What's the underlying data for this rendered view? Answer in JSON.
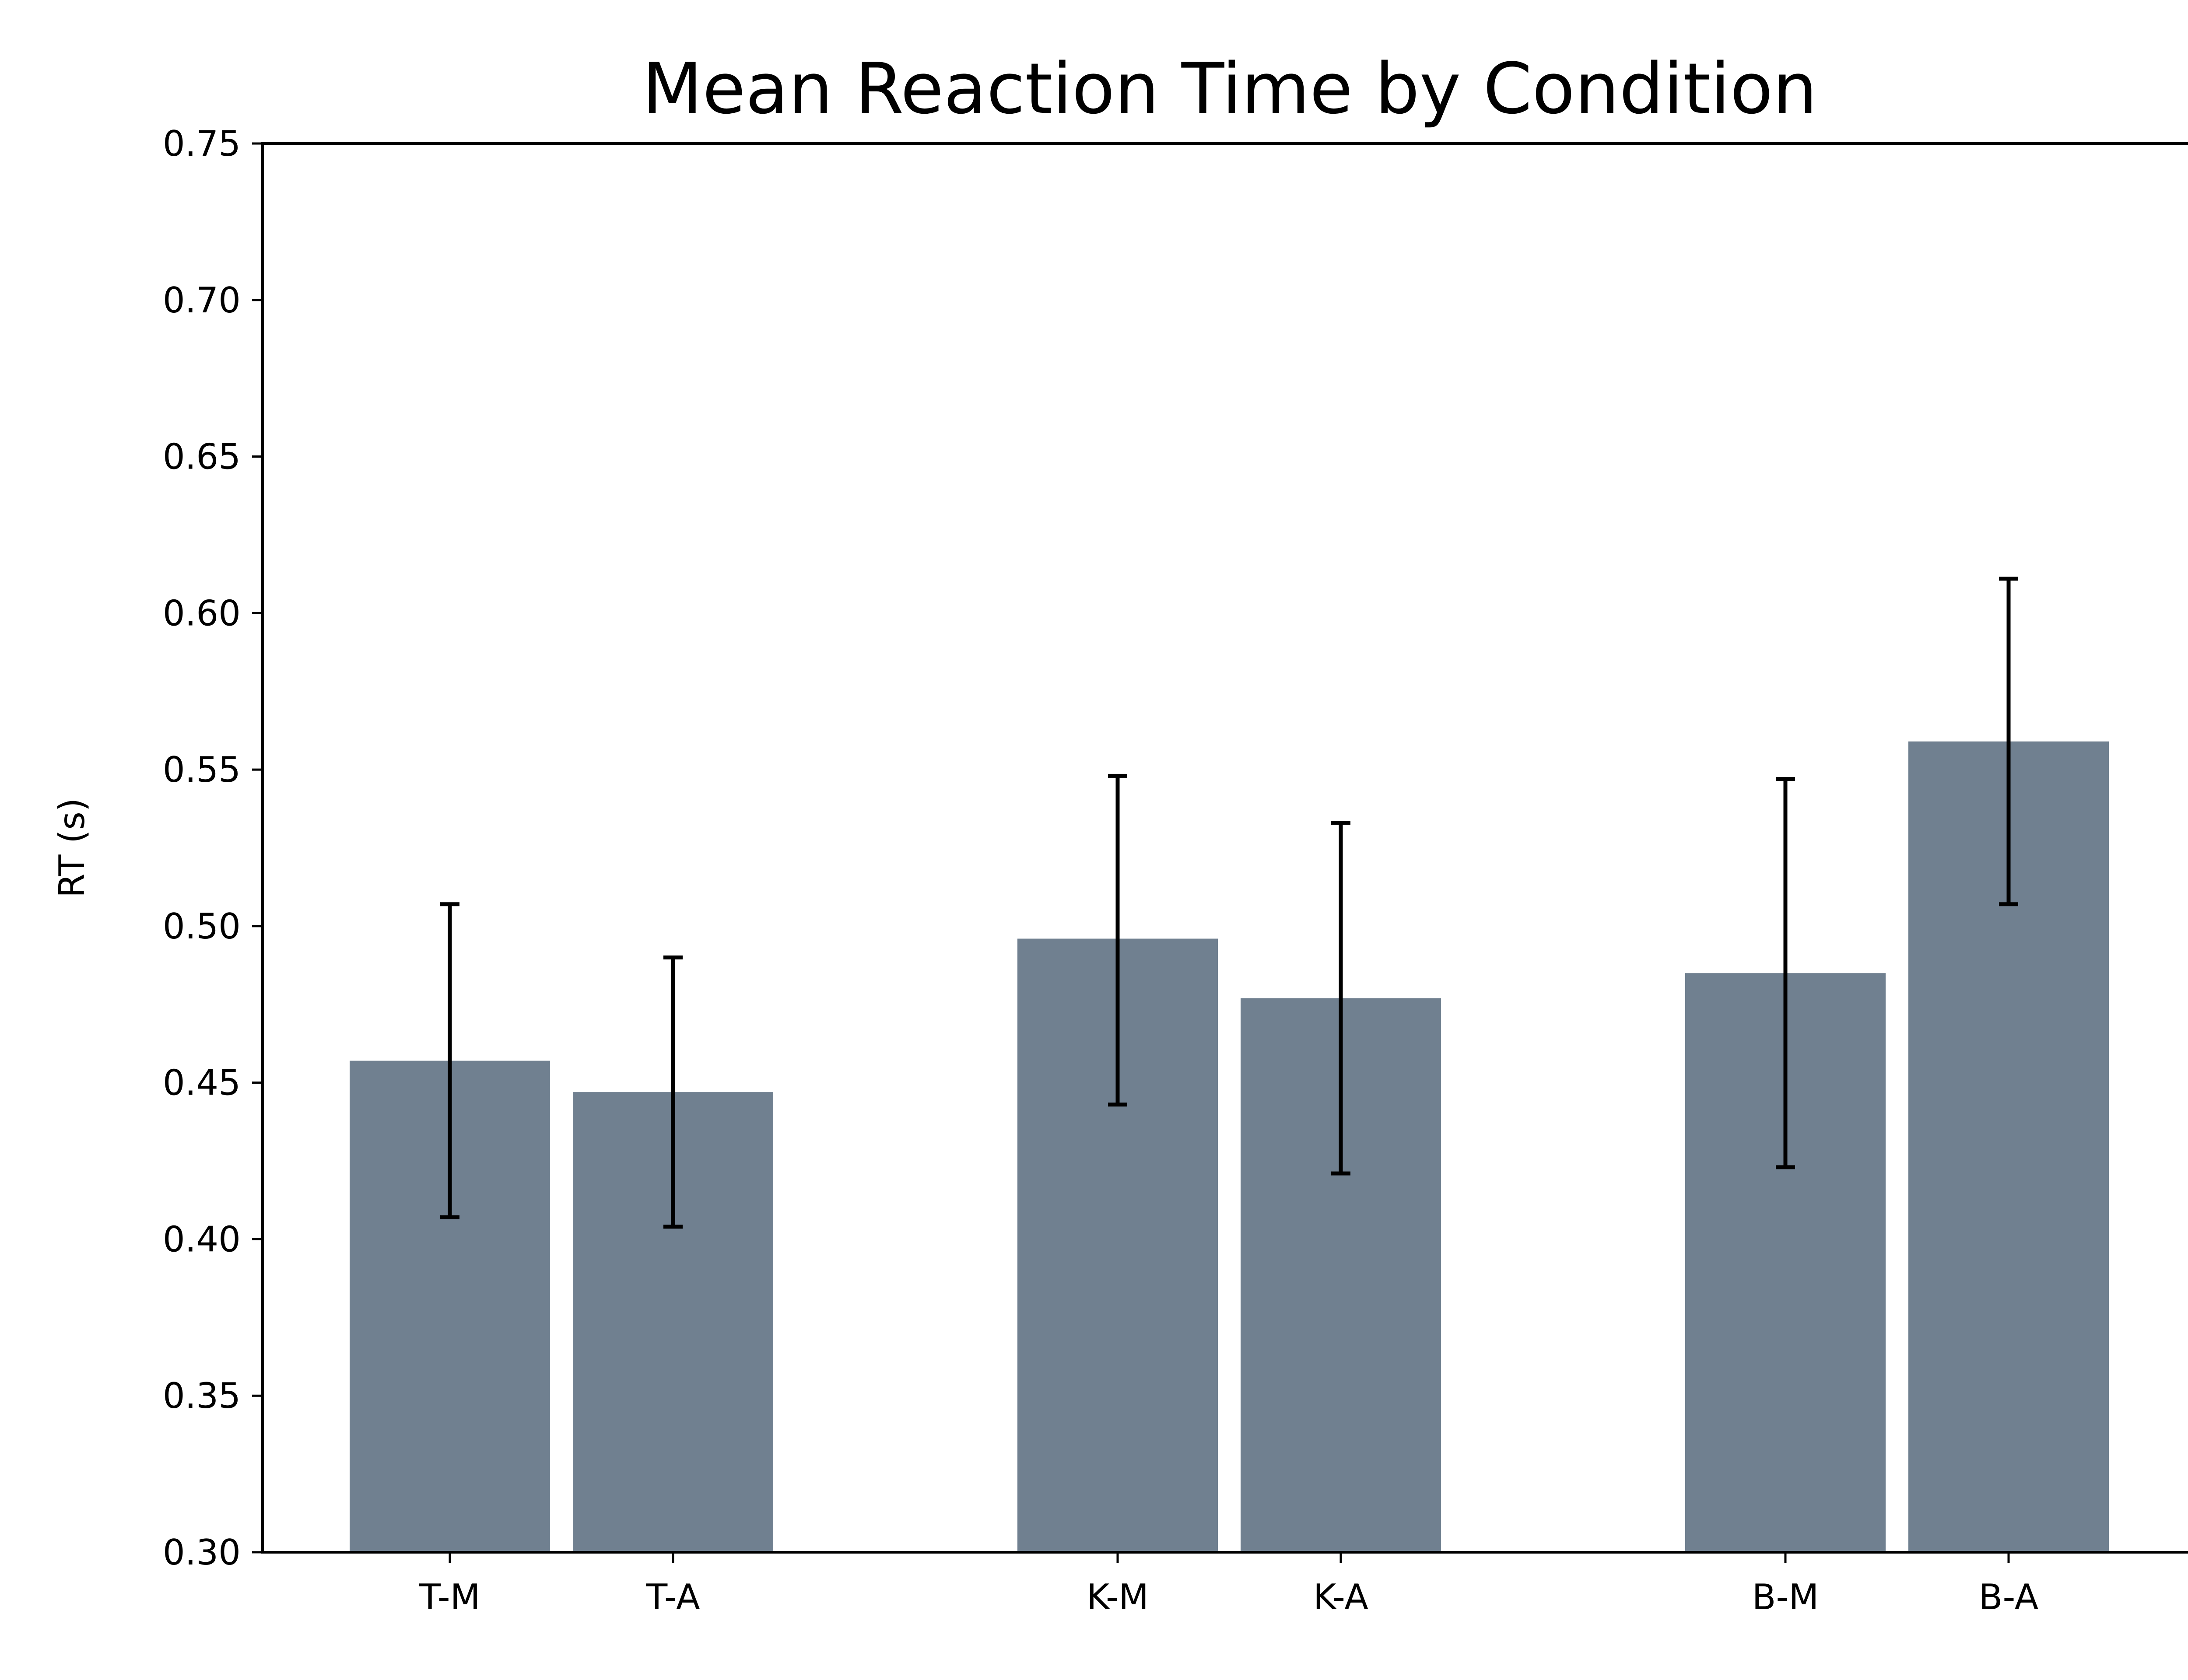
{
  "chart_data": {
    "type": "bar",
    "title": "Mean Reaction Time by Condition",
    "xlabel": "",
    "ylabel": "RT (s)",
    "ylim": [
      0.3,
      0.75
    ],
    "yticks": [
      "0.30",
      "0.35",
      "0.40",
      "0.45",
      "0.50",
      "0.55",
      "0.60",
      "0.65",
      "0.70",
      "0.75"
    ],
    "categories": [
      "T-M",
      "T-A",
      "K-M",
      "K-A",
      "B-M",
      "B-A"
    ],
    "groups": [
      [
        "T-M",
        "T-A"
      ],
      [
        "K-M",
        "K-A"
      ],
      [
        "B-M",
        "B-A"
      ]
    ],
    "values": [
      0.457,
      0.447,
      0.496,
      0.477,
      0.485,
      0.559
    ],
    "error_bars": [
      {
        "lower": 0.407,
        "upper": 0.507
      },
      {
        "lower": 0.404,
        "upper": 0.49
      },
      {
        "lower": 0.443,
        "upper": 0.548
      },
      {
        "lower": 0.421,
        "upper": 0.533
      },
      {
        "lower": 0.423,
        "upper": 0.547
      },
      {
        "lower": 0.507,
        "upper": 0.611
      }
    ],
    "bar_color": "#708090",
    "errorbar_color": "#000000",
    "grid": false,
    "legend": "none"
  }
}
